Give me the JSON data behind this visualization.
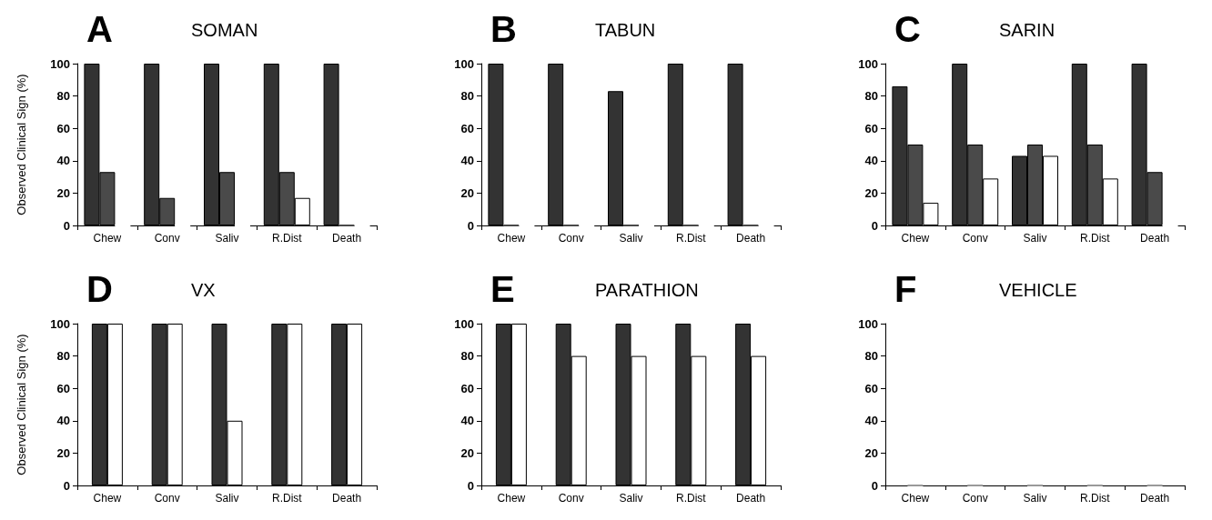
{
  "chart_data": [
    {
      "type": "bar",
      "title": "SOMAN",
      "annotations": [
        "A"
      ],
      "ylabel": "Observed Clinical Sign (%)",
      "categories": [
        "Chew",
        "Conv",
        "Saliv",
        "R.Dist",
        "Death"
      ],
      "ylim": [
        0,
        100
      ],
      "yticks": [
        0,
        20,
        40,
        60,
        80,
        100
      ],
      "grid": false,
      "series": [
        {
          "color": "#333333",
          "values": [
            100,
            100,
            100,
            100,
            100
          ]
        },
        {
          "color": "#4a4a4a",
          "values": [
            33,
            17,
            33,
            33,
            0
          ]
        },
        {
          "color": "#ffffff",
          "values": [
            0,
            0,
            0,
            17,
            0
          ]
        }
      ]
    },
    {
      "type": "bar",
      "title": "TABUN",
      "annotations": [
        "B"
      ],
      "categories": [
        "Chew",
        "Conv",
        "Saliv",
        "R.Dist",
        "Death"
      ],
      "ylim": [
        0,
        100
      ],
      "yticks": [
        0,
        20,
        40,
        60,
        80,
        100
      ],
      "grid": false,
      "series": [
        {
          "color": "#333333",
          "values": [
            100,
            100,
            83,
            100,
            100
          ]
        },
        {
          "color": "#4a4a4a",
          "values": [
            0,
            0,
            0,
            0,
            0
          ]
        },
        {
          "color": "#ffffff",
          "values": [
            0,
            0,
            0,
            0,
            0
          ]
        }
      ]
    },
    {
      "type": "bar",
      "title": "SARIN",
      "annotations": [
        "C"
      ],
      "categories": [
        "Chew",
        "Conv",
        "Saliv",
        "R.Dist",
        "Death"
      ],
      "ylim": [
        0,
        100
      ],
      "yticks": [
        0,
        20,
        40,
        60,
        80,
        100
      ],
      "grid": false,
      "series": [
        {
          "color": "#333333",
          "values": [
            86,
            100,
            43,
            100,
            100
          ]
        },
        {
          "color": "#4a4a4a",
          "values": [
            50,
            50,
            50,
            50,
            33
          ]
        },
        {
          "color": "#ffffff",
          "values": [
            14,
            29,
            43,
            29,
            0
          ]
        }
      ]
    },
    {
      "type": "bar",
      "title": "VX",
      "annotations": [
        "D"
      ],
      "ylabel": "Observed Clinical Sign (%)",
      "categories": [
        "Chew",
        "Conv",
        "Saliv",
        "R.Dist",
        "Death"
      ],
      "ylim": [
        0,
        100
      ],
      "yticks": [
        0,
        20,
        40,
        60,
        80,
        100
      ],
      "grid": false,
      "series": [
        {
          "color": "#333333",
          "values": [
            100,
            100,
            100,
            100,
            100
          ]
        },
        {
          "color": "#ffffff",
          "values": [
            100,
            100,
            40,
            100,
            100
          ]
        }
      ]
    },
    {
      "type": "bar",
      "title": "PARATHION",
      "annotations": [
        "E"
      ],
      "categories": [
        "Chew",
        "Conv",
        "Saliv",
        "R.Dist",
        "Death"
      ],
      "ylim": [
        0,
        100
      ],
      "yticks": [
        0,
        20,
        40,
        60,
        80,
        100
      ],
      "grid": false,
      "series": [
        {
          "color": "#333333",
          "values": [
            100,
            100,
            100,
            100,
            100
          ]
        },
        {
          "color": "#ffffff",
          "values": [
            100,
            80,
            80,
            80,
            80
          ]
        }
      ]
    },
    {
      "type": "bar",
      "title": "VEHICLE",
      "annotations": [
        "F"
      ],
      "categories": [
        "Chew",
        "Conv",
        "Saliv",
        "R.Dist",
        "Death"
      ],
      "ylim": [
        0,
        100
      ],
      "yticks": [
        0,
        20,
        40,
        60,
        80,
        100
      ],
      "grid": false,
      "series": [
        {
          "color": "#999999",
          "values": [
            0,
            0,
            0,
            0,
            0
          ]
        }
      ]
    }
  ]
}
